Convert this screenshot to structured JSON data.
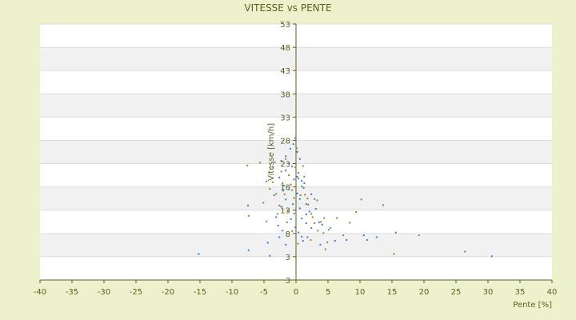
{
  "chart_data": {
    "type": "scatter",
    "title": "VITESSE vs PENTE",
    "xlabel": "Pente [%]",
    "ylabel": "Vitesse [km/h]",
    "xlim": [
      -40,
      40
    ],
    "ylim": [
      -2,
      53
    ],
    "x_ticks": [
      "-40",
      "-35",
      "-30",
      "-25",
      "-20",
      "-15",
      "-10",
      "-5",
      "0",
      "5",
      "10",
      "15",
      "20",
      "25",
      "30",
      "35",
      "40"
    ],
    "y_ticks": [
      "3",
      "3",
      "8",
      "13",
      "18",
      "23",
      "28",
      "33",
      "38",
      "43",
      "48",
      "53"
    ],
    "grid": true,
    "colors": {
      "background": "#eef2cc",
      "band_light": "#ffffff",
      "band_dark": "#f1f1f1",
      "axis": "#5e5e1e",
      "series_blue": "#2f7fdc",
      "series_olive": "#8a8a2a"
    },
    "series": [
      {
        "color_key": "series_blue",
        "points": [
          [
            -15.2,
            3.6
          ],
          [
            -7.4,
            4.4
          ],
          [
            -4.1,
            3.2
          ],
          [
            -4.4,
            6
          ],
          [
            -7.5,
            14
          ],
          [
            -2.6,
            7.2
          ],
          [
            -2.1,
            8.6
          ],
          [
            -3.1,
            11.5
          ],
          [
            -2.3,
            13.8
          ],
          [
            -3.4,
            16.2
          ],
          [
            -2,
            17.2
          ],
          [
            -2.6,
            20
          ],
          [
            -1.6,
            21.5
          ],
          [
            -1.1,
            23
          ],
          [
            -1.6,
            24.6
          ],
          [
            -0.9,
            26.2
          ],
          [
            -0.4,
            27.2
          ],
          [
            0.2,
            25.5
          ],
          [
            0.6,
            24
          ],
          [
            -0.6,
            22.4
          ],
          [
            0.4,
            21
          ],
          [
            -0.3,
            19.6
          ],
          [
            0.9,
            19.3
          ],
          [
            1.2,
            17.8
          ],
          [
            0.2,
            16.6
          ],
          [
            0.6,
            15.4
          ],
          [
            -0.5,
            14.3
          ],
          [
            1.6,
            14.3
          ],
          [
            2.1,
            12.7
          ],
          [
            0.9,
            11.2
          ],
          [
            1.6,
            10.2
          ],
          [
            2.4,
            9.2
          ],
          [
            0.4,
            8.2
          ],
          [
            1.8,
            7.2
          ],
          [
            1.1,
            6.4
          ],
          [
            3.8,
            5.6
          ],
          [
            6.1,
            6.4
          ],
          [
            7.9,
            6.6
          ],
          [
            10.6,
            7.6
          ],
          [
            11.1,
            6.6
          ],
          [
            12.6,
            7.2
          ],
          [
            15.6,
            8.2
          ],
          [
            30.6,
            3.1
          ],
          [
            -1.9,
            18.3
          ],
          [
            -0.3,
            12.3
          ],
          [
            2.9,
            15.4
          ],
          [
            3.6,
            10.4
          ],
          [
            -2.8,
            9.7
          ],
          [
            -1.6,
            5.6
          ],
          [
            1.3,
            18.8
          ],
          [
            0.2,
            20.2
          ],
          [
            -1.1,
            17.5
          ],
          [
            -4.6,
            19.2
          ],
          [
            -3.6,
            22.3
          ],
          [
            -2.3,
            23.6
          ],
          [
            -0.1,
            28.5
          ],
          [
            0.6,
            13.4
          ],
          [
            -0.8,
            11.1
          ],
          [
            1.6,
            12.1
          ],
          [
            2.4,
            16.4
          ],
          [
            3.1,
            13.3
          ],
          [
            -0.1,
            9.3
          ],
          [
            0.9,
            7.3
          ],
          [
            5.1,
            8.8
          ],
          [
            4.1,
            9.9
          ],
          [
            -1.6,
            15.3
          ]
        ]
      },
      {
        "color_key": "series_olive",
        "points": [
          [
            -7.6,
            22.6
          ],
          [
            -7.4,
            11.8
          ],
          [
            -5.6,
            23.2
          ],
          [
            -5.1,
            14.6
          ],
          [
            -4.6,
            10.6
          ],
          [
            -3.6,
            19
          ],
          [
            -3.1,
            16.5
          ],
          [
            -2.6,
            14
          ],
          [
            -2.1,
            18.8
          ],
          [
            -1.6,
            24
          ],
          [
            -1.1,
            20.5
          ],
          [
            -0.6,
            17.3
          ],
          [
            -0.1,
            22.2
          ],
          [
            0.4,
            19.8
          ],
          [
            0.9,
            18.1
          ],
          [
            1.4,
            16.3
          ],
          [
            1.9,
            14.2
          ],
          [
            2.4,
            12.2
          ],
          [
            2.9,
            10.2
          ],
          [
            3.4,
            8.6
          ],
          [
            3.9,
            10.5
          ],
          [
            4.4,
            11.3
          ],
          [
            4.9,
            6.1
          ],
          [
            5.4,
            9.2
          ],
          [
            6.4,
            11.3
          ],
          [
            7.4,
            7.6
          ],
          [
            8.4,
            10.3
          ],
          [
            9.4,
            12.6
          ],
          [
            10.2,
            15.3
          ],
          [
            13.6,
            14.1
          ],
          [
            15.3,
            3.6
          ],
          [
            19.2,
            7.6
          ],
          [
            26.4,
            4.1
          ],
          [
            -0.3,
            15.6
          ],
          [
            0.7,
            16.2
          ],
          [
            1.3,
            20.2
          ],
          [
            2.3,
            6.6
          ],
          [
            -1.3,
            12.8
          ],
          [
            -2.3,
            21.3
          ],
          [
            0.1,
            26.3
          ],
          [
            -0.8,
            18.5
          ],
          [
            -1.8,
            16.4
          ],
          [
            -3.3,
            23.3
          ],
          [
            3.3,
            15.1
          ],
          [
            4.3,
            8.1
          ],
          [
            2.6,
            11.5
          ],
          [
            1.8,
            15.5
          ],
          [
            -0.6,
            8.5
          ],
          [
            0.3,
            5.8
          ],
          [
            -2.9,
            12.2
          ],
          [
            -4.1,
            17.6
          ],
          [
            1.1,
            22.5
          ],
          [
            -1.4,
            10.4
          ],
          [
            4.6,
            4.6
          ]
        ]
      }
    ]
  }
}
